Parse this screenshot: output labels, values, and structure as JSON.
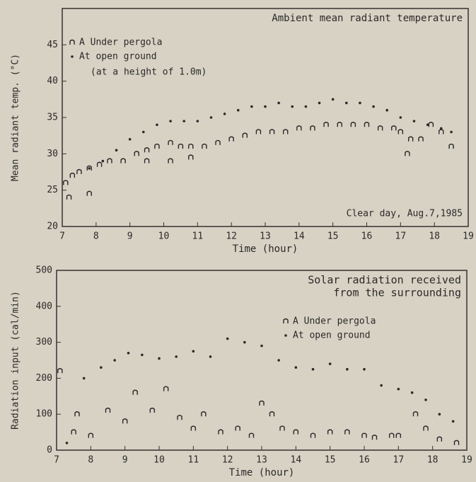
{
  "chart_data": [
    {
      "type": "scatter",
      "title": "Ambient mean radiant temperature",
      "annotations": [
        "(at a height of 1.0m)",
        "Clear day, Aug.7,1985"
      ],
      "xlabel": "Time (hour)",
      "ylabel": "Mean radiant temp. (°C)",
      "xlim": [
        7,
        19
      ],
      "xticks": [
        7,
        8,
        9,
        10,
        11,
        12,
        13,
        14,
        15,
        16,
        17,
        18,
        19
      ],
      "ylim": [
        20,
        50
      ],
      "yticks": [
        20,
        25,
        30,
        35,
        40,
        45
      ],
      "legend": "upper left",
      "series": [
        {
          "name": "A Under pergola",
          "marker": "n",
          "color": "#2a2a2a",
          "x": [
            7.1,
            7.3,
            7.5,
            7.8,
            8.1,
            8.4,
            8.8,
            9.2,
            9.5,
            9.8,
            10.2,
            10.5,
            10.8,
            11.2,
            11.6,
            12.0,
            12.4,
            12.8,
            13.2,
            13.6,
            14.0,
            14.4,
            14.8,
            15.2,
            15.6,
            16.0,
            16.4,
            16.8,
            17.0,
            17.3,
            17.6,
            17.9,
            18.2,
            18.5,
            7.2,
            7.8,
            9.5,
            10.2,
            10.8,
            17.2
          ],
          "values": [
            26,
            27,
            27.5,
            28,
            28.5,
            29,
            29,
            30,
            30.5,
            31,
            31.5,
            31,
            31,
            31,
            31.5,
            32,
            32.5,
            33,
            33,
            33,
            33.5,
            33.5,
            34,
            34,
            34,
            34,
            33.5,
            33.5,
            33,
            32,
            32,
            34,
            33,
            31,
            24,
            24.5,
            29,
            29,
            29.5,
            30
          ]
        },
        {
          "name": "At open ground",
          "marker": "dot",
          "color": "#2a2a2a",
          "x": [
            7.8,
            8.2,
            8.6,
            9.0,
            9.4,
            9.8,
            10.2,
            10.6,
            11.0,
            11.4,
            11.8,
            12.2,
            12.6,
            13.0,
            13.4,
            13.8,
            14.2,
            14.6,
            15.0,
            15.4,
            15.8,
            16.2,
            16.6,
            17.0,
            17.4,
            17.8,
            18.2,
            18.5
          ],
          "values": [
            28,
            29,
            30.5,
            32,
            33,
            34,
            34.5,
            34.5,
            34.5,
            35,
            35.5,
            36,
            36.5,
            36.5,
            37,
            36.5,
            36.5,
            37,
            37.5,
            37,
            37,
            36.5,
            36,
            35,
            34.5,
            34,
            33.5,
            33
          ]
        }
      ]
    },
    {
      "type": "scatter",
      "title_lines": [
        "Solar radiation received",
        "from the surrounding"
      ],
      "xlabel": "Time (hour)",
      "ylabel": "Radiation input (cal/min)",
      "xlim": [
        7,
        19
      ],
      "xticks": [
        7,
        8,
        9,
        10,
        11,
        12,
        13,
        14,
        15,
        16,
        17,
        18,
        19
      ],
      "ylim": [
        0,
        500
      ],
      "yticks": [
        0,
        100,
        200,
        300,
        400,
        500
      ],
      "legend": "upper center",
      "series": [
        {
          "name": "A Under pergola",
          "marker": "n",
          "color": "#2a2a2a",
          "x": [
            7.1,
            7.5,
            7.6,
            8.0,
            8.5,
            9.0,
            9.3,
            9.8,
            10.2,
            10.6,
            11.0,
            11.3,
            11.8,
            12.3,
            12.7,
            13.0,
            13.3,
            13.6,
            14.0,
            14.5,
            15.0,
            15.5,
            16.0,
            16.3,
            16.8,
            17.0,
            17.5,
            17.8,
            18.2,
            18.7
          ],
          "values": [
            220,
            50,
            100,
            40,
            110,
            80,
            160,
            110,
            170,
            90,
            60,
            100,
            50,
            60,
            40,
            130,
            100,
            60,
            50,
            40,
            50,
            50,
            40,
            35,
            40,
            40,
            100,
            60,
            30,
            20
          ]
        },
        {
          "name": "At open ground",
          "marker": "dot",
          "color": "#2a2a2a",
          "x": [
            7.3,
            7.8,
            8.3,
            8.7,
            9.1,
            9.5,
            10.0,
            10.5,
            11.0,
            11.5,
            12.0,
            12.5,
            13.0,
            13.5,
            14.0,
            14.5,
            15.0,
            15.5,
            16.0,
            16.5,
            17.0,
            17.4,
            17.8,
            18.2,
            18.6
          ],
          "values": [
            20,
            200,
            230,
            250,
            270,
            265,
            255,
            260,
            275,
            260,
            310,
            300,
            290,
            250,
            230,
            225,
            240,
            225,
            225,
            180,
            170,
            160,
            140,
            100,
            80
          ]
        }
      ]
    }
  ]
}
